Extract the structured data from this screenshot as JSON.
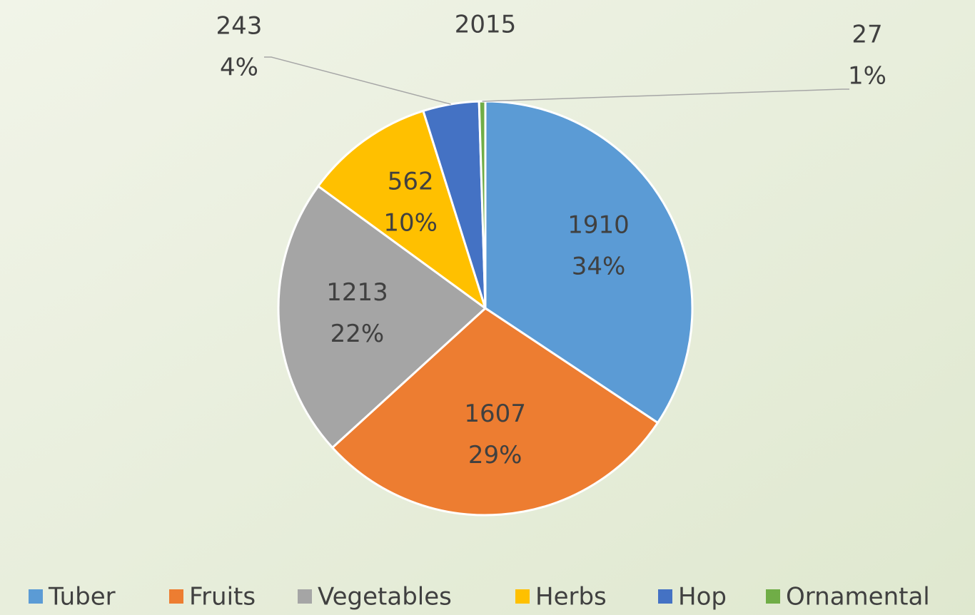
{
  "chart_data": {
    "type": "pie",
    "title": "2015",
    "categories": [
      "Tuber",
      "Fruits",
      "Vegetables",
      "Herbs",
      "Hop",
      "Ornamental"
    ],
    "values": [
      1910,
      1607,
      1213,
      562,
      243,
      27
    ],
    "percent_labels": [
      "34%",
      "29%",
      "22%",
      "10%",
      "4%",
      "1%"
    ],
    "colors": [
      "#5b9bd5",
      "#ed7d31",
      "#a5a5a5",
      "#ffc000",
      "#4472c4",
      "#70ad47"
    ],
    "legend": "bottom"
  }
}
